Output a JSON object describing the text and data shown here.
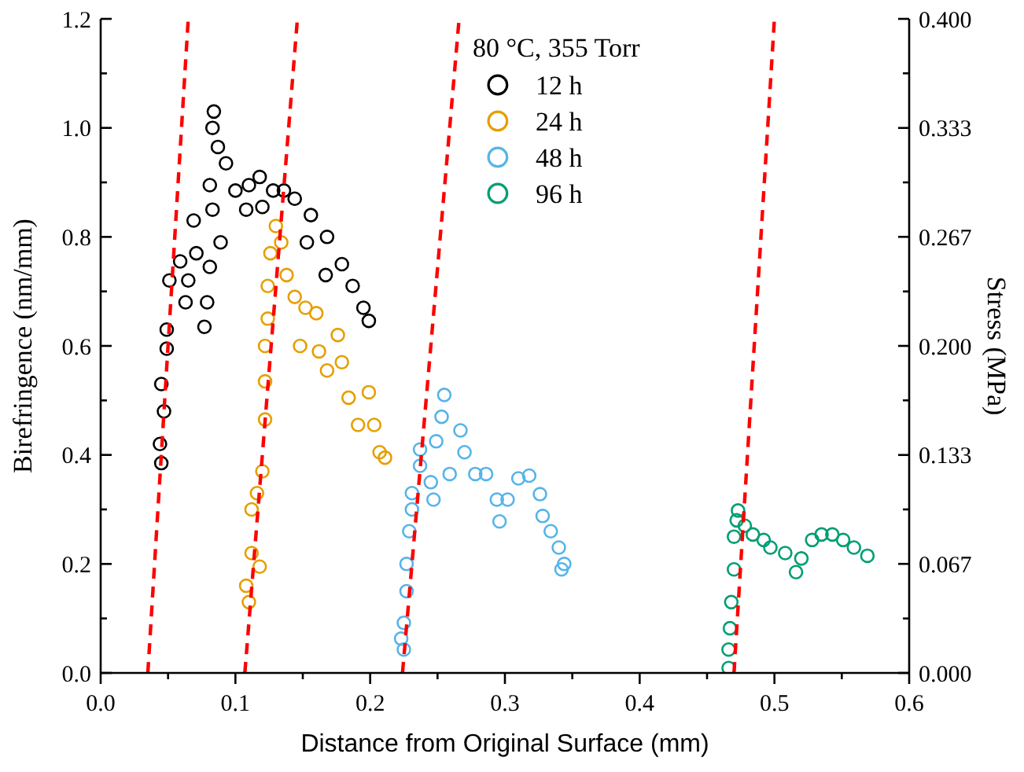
{
  "chart_data": {
    "type": "scatter",
    "xlabel": "Distance from Original Surface (mm)",
    "ylabel": "Birefringence (nm/mm)",
    "y2label": "Stress (MPa)",
    "legend_title": "80 °C, 355 Torr",
    "legend": "top right",
    "marker": "circle",
    "xlim": [
      0,
      0.6
    ],
    "xticks": [
      {
        "value": 0,
        "label": "0.0"
      },
      {
        "value": 0.05,
        "label": null
      },
      0.1,
      {
        "value": 0.15,
        "label": null
      },
      0.2,
      {
        "value": 0.25,
        "label": null
      },
      0.3,
      {
        "value": 0.35,
        "label": null
      },
      0.4,
      {
        "value": 0.45,
        "label": null
      },
      0.5,
      {
        "value": 0.55,
        "label": null
      },
      0.6
    ],
    "ylim": [
      0,
      1.2
    ],
    "yticks": [
      {
        "value": 0,
        "label": "0.0"
      },
      {
        "value": 0.1,
        "label": null
      },
      0.2,
      {
        "value": 0.3,
        "label": null
      },
      0.4,
      {
        "value": 0.5,
        "label": null
      },
      0.6,
      {
        "value": 0.7,
        "label": null
      },
      0.8,
      {
        "value": 0.9,
        "label": null
      },
      {
        "value": 1,
        "label": "1.0"
      },
      {
        "value": 1.1,
        "label": null
      },
      1.2
    ],
    "y2lim": [
      0,
      0.4
    ],
    "y2ticks": [
      {
        "value": 0,
        "label": "0.000"
      },
      {
        "value": 0.0333,
        "label": null
      },
      {
        "value": 0.0667,
        "label": "0.067"
      },
      {
        "value": 0.1,
        "label": null
      },
      {
        "value": 0.1333,
        "label": "0.133"
      },
      {
        "value": 0.1667,
        "label": null
      },
      {
        "value": 0.2,
        "label": "0.200"
      },
      {
        "value": 0.2333,
        "label": null
      },
      {
        "value": 0.2667,
        "label": "0.267"
      },
      {
        "value": 0.3,
        "label": null
      },
      {
        "value": 0.3333,
        "label": "0.333"
      },
      {
        "value": 0.3667,
        "label": null
      },
      {
        "value": 0.4,
        "label": "0.400"
      }
    ],
    "series": [
      {
        "name": "12 h",
        "color": "#000000",
        "x": [
          0.045,
          0.044,
          0.047,
          0.045,
          0.049,
          0.049,
          0.051,
          0.059,
          0.065,
          0.063,
          0.069,
          0.071,
          0.077,
          0.079,
          0.081,
          0.084,
          0.083,
          0.087,
          0.081,
          0.083,
          0.089,
          0.093,
          0.1,
          0.108,
          0.11,
          0.118,
          0.12,
          0.128,
          0.136,
          0.144,
          0.153,
          0.156,
          0.167,
          0.168,
          0.179,
          0.187,
          0.195,
          0.199
        ],
        "values": [
          0.385,
          0.42,
          0.48,
          0.53,
          0.595,
          0.63,
          0.72,
          0.755,
          0.72,
          0.68,
          0.83,
          0.77,
          0.635,
          0.68,
          0.745,
          1.03,
          1.0,
          0.965,
          0.895,
          0.85,
          0.79,
          0.935,
          0.885,
          0.85,
          0.895,
          0.91,
          0.855,
          0.885,
          0.885,
          0.87,
          0.79,
          0.84,
          0.73,
          0.8,
          0.75,
          0.71,
          0.67,
          0.646
        ]
      },
      {
        "name": "24 h",
        "color": "#e69f00",
        "x": [
          0.11,
          0.108,
          0.112,
          0.118,
          0.112,
          0.116,
          0.12,
          0.122,
          0.122,
          0.122,
          0.124,
          0.124,
          0.126,
          0.13,
          0.134,
          0.138,
          0.144,
          0.148,
          0.152,
          0.16,
          0.162,
          0.168,
          0.176,
          0.179,
          0.184,
          0.191,
          0.199,
          0.203,
          0.207,
          0.211
        ],
        "values": [
          0.13,
          0.16,
          0.22,
          0.195,
          0.3,
          0.33,
          0.37,
          0.465,
          0.535,
          0.6,
          0.65,
          0.71,
          0.77,
          0.82,
          0.79,
          0.73,
          0.69,
          0.6,
          0.67,
          0.66,
          0.59,
          0.555,
          0.62,
          0.57,
          0.505,
          0.455,
          0.515,
          0.455,
          0.405,
          0.395
        ]
      },
      {
        "name": "48 h",
        "color": "#56b4e9",
        "x": [
          0.225,
          0.223,
          0.225,
          0.227,
          0.227,
          0.229,
          0.231,
          0.231,
          0.237,
          0.237,
          0.245,
          0.247,
          0.249,
          0.253,
          0.255,
          0.259,
          0.267,
          0.27,
          0.278,
          0.286,
          0.294,
          0.296,
          0.302,
          0.31,
          0.318,
          0.326,
          0.328,
          0.334,
          0.34,
          0.344,
          0.342
        ],
        "values": [
          0.043,
          0.063,
          0.092,
          0.15,
          0.2,
          0.26,
          0.3,
          0.33,
          0.38,
          0.41,
          0.35,
          0.318,
          0.425,
          0.47,
          0.51,
          0.365,
          0.445,
          0.405,
          0.365,
          0.365,
          0.318,
          0.278,
          0.318,
          0.357,
          0.362,
          0.328,
          0.288,
          0.26,
          0.23,
          0.2,
          0.19
        ]
      },
      {
        "name": "96 h",
        "color": "#009e73",
        "x": [
          0.466,
          0.466,
          0.467,
          0.468,
          0.47,
          0.47,
          0.472,
          0.473,
          0.478,
          0.484,
          0.492,
          0.497,
          0.508,
          0.516,
          0.52,
          0.528,
          0.535,
          0.543,
          0.551,
          0.559,
          0.569
        ],
        "values": [
          0.009,
          0.043,
          0.082,
          0.13,
          0.19,
          0.25,
          0.28,
          0.298,
          0.27,
          0.254,
          0.244,
          0.23,
          0.22,
          0.185,
          0.21,
          0.244,
          0.254,
          0.254,
          0.244,
          0.23,
          0.215
        ]
      },
      {
        "type": "line",
        "marker": "none",
        "line_style": "dashed",
        "color": "#ff0000",
        "x": [
          0.035,
          0.065
        ],
        "values": [
          0,
          1.2
        ]
      },
      {
        "type": "line",
        "marker": "none",
        "line_style": "dashed",
        "color": "#ff0000",
        "x": [
          0.107,
          0.146
        ],
        "values": [
          0,
          1.2
        ]
      },
      {
        "type": "line",
        "marker": "none",
        "line_style": "dashed",
        "color": "#ff0000",
        "x": [
          0.224,
          0.266
        ],
        "values": [
          0,
          1.2
        ]
      },
      {
        "type": "line",
        "marker": "none",
        "line_style": "dashed",
        "color": "#ff0000",
        "x": [
          0.47,
          0.5
        ],
        "values": [
          0,
          1.2
        ]
      }
    ]
  }
}
